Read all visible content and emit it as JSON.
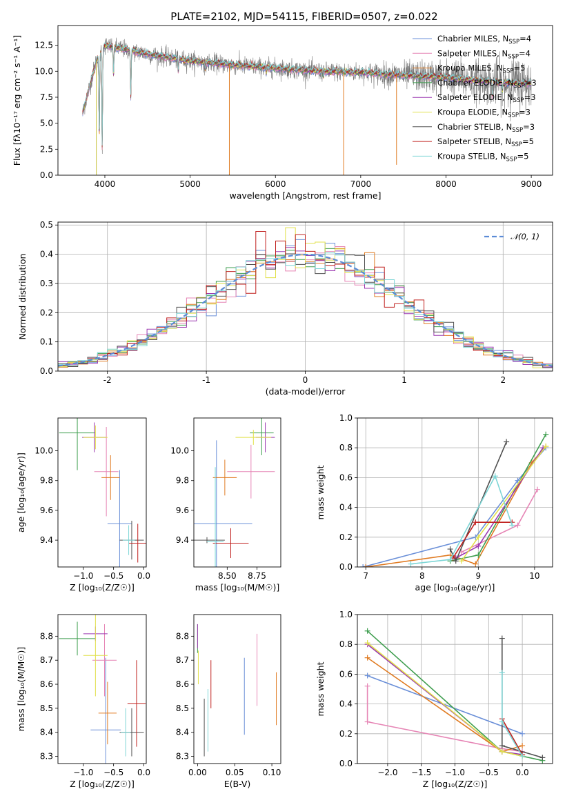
{
  "colors": {
    "Chabrier MILES": "#6a8fd8",
    "Salpeter MILES": "#e685b5",
    "Kroupa MILES": "#e07b22",
    "Chabrier ELODIE": "#3f9e4f",
    "Salpeter ELODIE": "#9b38b0",
    "Kroupa ELODIE": "#e1e04a",
    "Chabrier STELIB": "#505050",
    "Salpeter STELIB": "#c0201e",
    "Kroupa STELIB": "#7dd6d6",
    "normal": "#5b8bd6",
    "green_line": "#5a8a62"
  },
  "chart_data": [
    {
      "id": "spectrum",
      "type": "line",
      "title": "PLATE=2102, MJD=54115, FIBERID=0507, z=0.022",
      "xlabel": "wavelength [Angstrom, rest frame]",
      "ylabel": "Flux [fλ10⁻¹⁷ erg cm⁻² s⁻¹ A⁻¹]",
      "xlim": [
        3450,
        9250
      ],
      "ylim": [
        0,
        14.4
      ],
      "xticks": [
        4000,
        5000,
        6000,
        7000,
        8000,
        9000
      ],
      "yticks": [
        0.0,
        2.5,
        5.0,
        7.5,
        10.0,
        12.5
      ],
      "legend_position": "top-right",
      "legend": [
        {
          "label": "Chabrier MILES, N",
          "sub": "SSP",
          "suffix": "=4"
        },
        {
          "label": "Salpeter MILES, N",
          "sub": "SSP",
          "suffix": "=4"
        },
        {
          "label": "Kroupa MILES, N",
          "sub": "SSP",
          "suffix": "=5"
        },
        {
          "label": "Chabrier ELODIE, N",
          "sub": "SSP",
          "suffix": "=3"
        },
        {
          "label": "Salpeter ELODIE, N",
          "sub": "SSP",
          "suffix": "=3"
        },
        {
          "label": "Kroupa ELODIE, N",
          "sub": "SSP",
          "suffix": "=3"
        },
        {
          "label": "Chabrier STELIB, N",
          "sub": "SSP",
          "suffix": "=3"
        },
        {
          "label": "Salpeter STELIB, N",
          "sub": "SSP",
          "suffix": "=5"
        },
        {
          "label": "Kroupa STELIB, N",
          "sub": "SSP",
          "suffix": "=5"
        }
      ],
      "wavelength_range": [
        3740,
        9000
      ],
      "continuum_points": [
        [
          3740,
          6.0
        ],
        [
          3900,
          11.0
        ],
        [
          4000,
          12.5
        ],
        [
          4300,
          12.0
        ],
        [
          4600,
          11.5
        ],
        [
          5000,
          11.0
        ],
        [
          5500,
          10.6
        ],
        [
          6000,
          10.3
        ],
        [
          6500,
          10.0
        ],
        [
          7000,
          9.9
        ],
        [
          7500,
          9.6
        ],
        [
          8000,
          9.4
        ],
        [
          8500,
          9.0
        ],
        [
          9000,
          8.8
        ]
      ],
      "absorption_features": [
        [
          3934,
          3.5
        ],
        [
          3969,
          2.5
        ],
        [
          4102,
          9.5
        ],
        [
          4304,
          7.5
        ],
        [
          4861,
          10.0
        ],
        [
          5176,
          10.2
        ],
        [
          5893,
          9.8
        ],
        [
          6563,
          9.5
        ],
        [
          8542,
          7.5
        ],
        [
          8662,
          8.0
        ]
      ],
      "spikes": [
        [
          5460,
          0.0
        ],
        [
          6800,
          0.0
        ],
        [
          7420,
          1.0
        ],
        [
          3900,
          0.0
        ]
      ]
    },
    {
      "id": "residuals",
      "type": "histogram",
      "xlabel": "(data-model)/error",
      "ylabel": "Normed distribution",
      "xlim": [
        -2.5,
        2.5
      ],
      "ylim": [
        0,
        0.51
      ],
      "xticks": [
        -2,
        -1,
        0,
        1,
        2
      ],
      "yticks": [
        0.0,
        0.1,
        0.2,
        0.3,
        0.4,
        0.5
      ],
      "grid": true,
      "legend_position": "top-right",
      "legend": [
        "𝒩(0, 1)"
      ],
      "bin_width": 0.1,
      "bin_start": -2.5,
      "gaussian": {
        "mean": 0,
        "sigma": 1
      }
    },
    {
      "id": "age_vs_Z",
      "type": "errorbar",
      "xlabel": "Z [log₁₀(Z/Z☉)]",
      "ylabel": "age  [log₁₀(age/yr)]",
      "xlim": [
        -1.42,
        0.04
      ],
      "ylim": [
        9.22,
        10.22
      ],
      "xticks": [
        -1.0,
        -0.5,
        0.0
      ],
      "xtick_labels": [
        "−1.0",
        "−0.5",
        "0.0"
      ],
      "yticks": [
        9.4,
        9.6,
        9.8,
        10.0
      ],
      "points": [
        {
          "model": "Chabrier MILES",
          "x": -0.4,
          "xerr": 0.2,
          "y": 9.51,
          "yerr": 0.36
        },
        {
          "model": "Salpeter MILES",
          "x": -0.62,
          "xerr": 0.2,
          "y": 9.86,
          "yerr": 0.3
        },
        {
          "model": "Kroupa MILES",
          "x": -0.55,
          "xerr": 0.15,
          "y": 9.82,
          "yerr": 0.15
        },
        {
          "model": "Chabrier ELODIE",
          "x": -1.1,
          "xerr": 0.3,
          "y": 10.12,
          "yerr": 0.25
        },
        {
          "model": "Salpeter ELODIE",
          "x": -0.82,
          "xerr": 0.2,
          "y": 10.09,
          "yerr": 0.1
        },
        {
          "model": "Kroupa ELODIE",
          "x": -0.8,
          "xerr": 0.2,
          "y": 10.09,
          "yerr": 0.08
        },
        {
          "model": "Chabrier STELIB",
          "x": -0.2,
          "xerr": 0.2,
          "y": 9.4,
          "yerr": 0.13
        },
        {
          "model": "Salpeter STELIB",
          "x": -0.1,
          "xerr": 0.15,
          "y": 9.38,
          "yerr": 0.13
        },
        {
          "model": "Kroupa STELIB",
          "x": -0.25,
          "xerr": 0.1,
          "y": 9.4,
          "yerr": 0.1
        }
      ]
    },
    {
      "id": "age_vs_mass",
      "type": "errorbar",
      "xlabel": "mass [log₁₀(M/M☉)]",
      "ylabel": "",
      "xlim": [
        8.22,
        8.95
      ],
      "ylim": [
        9.22,
        10.22
      ],
      "xticks": [
        8.5,
        8.75
      ],
      "xtick_labels": [
        "8.50",
        "8.75"
      ],
      "yticks": [
        9.4,
        9.6,
        9.8,
        10.0
      ],
      "points": [
        {
          "model": "Chabrier MILES",
          "x": 8.41,
          "xerr": 0.3,
          "y": 9.51,
          "yerr": 0.56
        },
        {
          "model": "Salpeter MILES",
          "x": 8.7,
          "xerr": 0.2,
          "y": 9.86,
          "yerr": 0.18
        },
        {
          "model": "Kroupa MILES",
          "x": 8.48,
          "xerr": 0.1,
          "y": 9.82,
          "yerr": 0.12
        },
        {
          "model": "Chabrier ELODIE",
          "x": 8.79,
          "xerr": 0.1,
          "y": 10.12,
          "yerr": 0.15
        },
        {
          "model": "Salpeter ELODIE",
          "x": 8.82,
          "xerr": 0.08,
          "y": 10.09,
          "yerr": 0.1
        },
        {
          "model": "Kroupa ELODIE",
          "x": 8.72,
          "xerr": 0.15,
          "y": 10.09,
          "yerr": 0.05
        },
        {
          "model": "Chabrier STELIB",
          "x": 8.33,
          "xerr": 0.15,
          "y": 9.4,
          "yerr": 0.02
        },
        {
          "model": "Salpeter STELIB",
          "x": 8.53,
          "xerr": 0.15,
          "y": 9.38,
          "yerr": 0.1
        },
        {
          "model": "Kroupa STELIB",
          "x": 8.4,
          "xerr": 0.07,
          "y": 9.39,
          "yerr": 0.5
        }
      ]
    },
    {
      "id": "weight_vs_age",
      "type": "line",
      "xlabel": "age  [log₁₀(age/yr)]",
      "ylabel": "mass weight",
      "xlim": [
        6.85,
        10.32
      ],
      "ylim": [
        0,
        1.0
      ],
      "xticks": [
        7,
        8,
        9,
        10
      ],
      "yticks": [
        0.0,
        0.2,
        0.4,
        0.6,
        0.8,
        1.0
      ],
      "grid": true,
      "series": [
        {
          "model": "Chabrier MILES",
          "points": [
            [
              6.95,
              0.0
            ],
            [
              8.95,
              0.2
            ],
            [
              9.7,
              0.58
            ],
            [
              10.2,
              0.8
            ]
          ]
        },
        {
          "model": "Salpeter MILES",
          "points": [
            [
              8.7,
              0.1
            ],
            [
              9.7,
              0.28
            ],
            [
              10.05,
              0.52
            ]
          ]
        },
        {
          "model": "Kroupa MILES",
          "points": [
            [
              7.0,
              0.0
            ],
            [
              8.5,
              0.08
            ],
            [
              8.95,
              0.02
            ],
            [
              9.95,
              0.7
            ],
            [
              10.2,
              0.81
            ]
          ]
        },
        {
          "model": "Chabrier ELODIE",
          "points": [
            [
              8.5,
              0.04
            ],
            [
              9.0,
              0.08
            ],
            [
              10.2,
              0.89
            ]
          ]
        },
        {
          "model": "Salpeter ELODIE",
          "points": [
            [
              8.6,
              0.06
            ],
            [
              9.0,
              0.14
            ],
            [
              10.15,
              0.8
            ]
          ]
        },
        {
          "model": "Kroupa ELODIE",
          "points": [
            [
              8.7,
              0.04
            ],
            [
              9.0,
              0.2
            ],
            [
              10.2,
              0.81
            ]
          ]
        },
        {
          "model": "Chabrier STELIB",
          "points": [
            [
              8.5,
              0.12
            ],
            [
              8.6,
              0.04
            ],
            [
              9.5,
              0.84
            ]
          ]
        },
        {
          "model": "Salpeter STELIB",
          "points": [
            [
              8.55,
              0.06
            ],
            [
              8.95,
              0.3
            ],
            [
              9.6,
              0.3
            ]
          ]
        },
        {
          "model": "Kroupa STELIB",
          "points": [
            [
              7.8,
              0.02
            ],
            [
              8.5,
              0.05
            ],
            [
              9.3,
              0.61
            ],
            [
              9.6,
              0.28
            ]
          ]
        }
      ]
    },
    {
      "id": "mass_vs_Z",
      "type": "errorbar",
      "xlabel": "Z [log₁₀(Z/Z☉)]",
      "ylabel": "mass [log₁₀(M/M☉)]",
      "xlim": [
        -1.42,
        0.04
      ],
      "ylim": [
        8.27,
        8.89
      ],
      "xticks": [
        -1.0,
        -0.5,
        0.0
      ],
      "xtick_labels": [
        "−1.0",
        "−0.5",
        "0.0"
      ],
      "yticks": [
        8.3,
        8.4,
        8.5,
        8.6,
        8.7,
        8.8
      ],
      "points": [
        {
          "model": "Chabrier MILES",
          "x": -0.63,
          "xerr": 0.25,
          "y": 8.41,
          "yerr": 0.3
        },
        {
          "model": "Salpeter MILES",
          "x": -0.65,
          "xerr": 0.2,
          "y": 8.7,
          "yerr": 0.15
        },
        {
          "model": "Kroupa MILES",
          "x": -0.6,
          "xerr": 0.15,
          "y": 8.48,
          "yerr": 0.13
        },
        {
          "model": "Chabrier ELODIE",
          "x": -1.1,
          "xerr": 0.3,
          "y": 8.79,
          "yerr": 0.07
        },
        {
          "model": "Salpeter ELODIE",
          "x": -0.8,
          "xerr": 0.2,
          "y": 8.81,
          "yerr": 0.03
        },
        {
          "model": "Kroupa ELODIE",
          "x": -0.8,
          "xerr": 0.2,
          "y": 8.72,
          "yerr": 0.17
        },
        {
          "model": "Chabrier STELIB",
          "x": -0.2,
          "xerr": 0.2,
          "y": 8.4,
          "yerr": 0.1
        },
        {
          "model": "Salpeter STELIB",
          "x": -0.12,
          "xerr": 0.15,
          "y": 8.52,
          "yerr": 0.18
        },
        {
          "model": "Kroupa STELIB",
          "x": -0.3,
          "xerr": 0.08,
          "y": 8.4,
          "yerr": 0.1
        }
      ]
    },
    {
      "id": "mass_vs_ebv",
      "type": "errorbar",
      "xlabel": "E(B-V)",
      "ylabel": "",
      "xlim": [
        -0.005,
        0.112
      ],
      "ylim": [
        8.27,
        8.89
      ],
      "xticks": [
        0.0,
        0.05,
        0.1
      ],
      "xtick_labels": [
        "0.00",
        "0.05",
        "0.10"
      ],
      "yticks": [
        8.3,
        8.4,
        8.5,
        8.6,
        8.7,
        8.8
      ],
      "points": [
        {
          "model": "Chabrier MILES",
          "x": 0.063,
          "xerr": 0.0,
          "y": 8.55,
          "yerr": 0.16
        },
        {
          "model": "Salpeter MILES",
          "x": 0.08,
          "xerr": 0.0,
          "y": 8.66,
          "yerr": 0.15
        },
        {
          "model": "Kroupa MILES",
          "x": 0.106,
          "xerr": 0.0,
          "y": 8.54,
          "yerr": 0.11
        },
        {
          "model": "Chabrier ELODIE",
          "x": 0.0,
          "xerr": 0.0,
          "y": 8.79,
          "yerr": 0.06
        },
        {
          "model": "Salpeter ELODIE",
          "x": 0.0,
          "xerr": 0.0,
          "y": 8.8,
          "yerr": 0.05
        },
        {
          "model": "Kroupa ELODIE",
          "x": 0.001,
          "xerr": 0.0,
          "y": 8.67,
          "yerr": 0.07
        },
        {
          "model": "Chabrier STELIB",
          "x": 0.009,
          "xerr": 0.0,
          "y": 8.42,
          "yerr": 0.12
        },
        {
          "model": "Salpeter STELIB",
          "x": 0.018,
          "xerr": 0.0,
          "y": 8.6,
          "yerr": 0.1
        },
        {
          "model": "Kroupa STELIB",
          "x": 0.014,
          "xerr": 0.0,
          "y": 8.45,
          "yerr": 0.13
        }
      ]
    },
    {
      "id": "weight_vs_Z",
      "type": "line",
      "xlabel": "Z [log₁₀(Z/Z☉)]",
      "ylabel": "mass weight",
      "xlim": [
        -2.45,
        0.45
      ],
      "ylim": [
        0,
        1.0
      ],
      "xticks": [
        -2.0,
        -1.5,
        -1.0,
        -0.5,
        0.0
      ],
      "xtick_labels": [
        "−2.0",
        "−1.5",
        "−1.0",
        "−0.5",
        "0.0"
      ],
      "yticks": [
        0.0,
        0.2,
        0.4,
        0.6,
        0.8,
        1.0
      ],
      "grid": true,
      "series": [
        {
          "model": "Chabrier MILES",
          "points": [
            [
              -2.3,
              0.59
            ],
            [
              0.0,
              0.2
            ]
          ]
        },
        {
          "model": "Salpeter MILES",
          "points": [
            [
              -2.3,
              0.52
            ],
            [
              -2.3,
              0.28
            ],
            [
              -0.3,
              0.1
            ],
            [
              0.0,
              0.08
            ]
          ]
        },
        {
          "model": "Kroupa MILES",
          "points": [
            [
              -2.3,
              0.71
            ],
            [
              -0.3,
              0.08
            ],
            [
              0.0,
              0.12
            ]
          ]
        },
        {
          "model": "Chabrier ELODIE",
          "points": [
            [
              -2.3,
              0.89
            ],
            [
              -0.3,
              0.08
            ],
            [
              0.3,
              0.02
            ]
          ]
        },
        {
          "model": "Salpeter ELODIE",
          "points": [
            [
              -2.3,
              0.8
            ],
            [
              -0.3,
              0.08
            ],
            [
              0.0,
              0.06
            ]
          ]
        },
        {
          "model": "Kroupa ELODIE",
          "points": [
            [
              -2.3,
              0.81
            ],
            [
              -0.3,
              0.08
            ],
            [
              0.0,
              0.05
            ]
          ]
        },
        {
          "model": "Chabrier STELIB",
          "points": [
            [
              -0.3,
              0.84
            ],
            [
              -0.3,
              0.12
            ],
            [
              0.3,
              0.04
            ]
          ]
        },
        {
          "model": "Salpeter STELIB",
          "points": [
            [
              -0.3,
              0.3
            ],
            [
              0.0,
              0.06
            ]
          ]
        },
        {
          "model": "Kroupa STELIB",
          "points": [
            [
              -0.3,
              0.61
            ],
            [
              -0.3,
              0.28
            ],
            [
              0.0,
              0.05
            ]
          ]
        }
      ]
    }
  ]
}
